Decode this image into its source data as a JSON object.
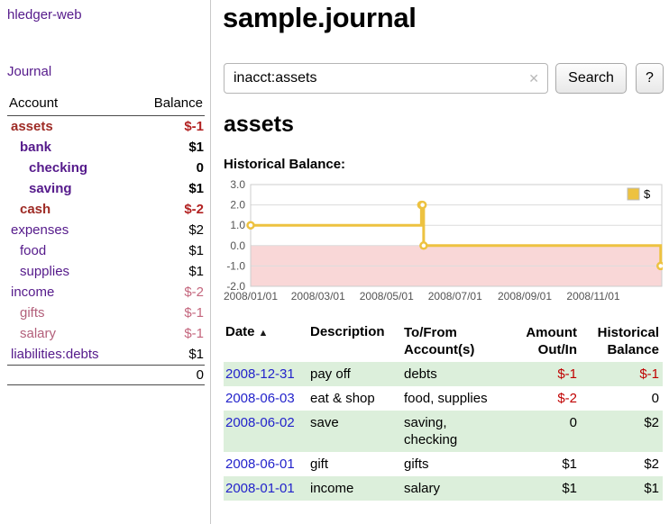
{
  "colors": {
    "link_purple": "#551a8b",
    "negative_red_bold": "#b22222",
    "negative_rose": "#c4667d",
    "register_negative": "#c00000",
    "row_stripe_green": "#dcefdb",
    "chart_series_gold": "#edc240",
    "chart_negative_region": "#f9d7d7",
    "date_link_blue": "#2323cb"
  },
  "sidebar": {
    "brand": "hledger-web",
    "journal_link": "Journal",
    "header": {
      "account": "Account",
      "balance": "Balance"
    },
    "accounts": [
      {
        "name": "assets",
        "balance": "$-1"
      },
      {
        "name": "bank",
        "balance": "$1"
      },
      {
        "name": "checking",
        "balance": "0"
      },
      {
        "name": "saving",
        "balance": "$1"
      },
      {
        "name": "cash",
        "balance": "$-2"
      },
      {
        "name": "expenses",
        "balance": "$2"
      },
      {
        "name": "food",
        "balance": "$1"
      },
      {
        "name": "supplies",
        "balance": "$1"
      },
      {
        "name": "income",
        "balance": "$-2"
      },
      {
        "name": "gifts",
        "balance": "$-1"
      },
      {
        "name": "salary",
        "balance": "$-1"
      },
      {
        "name": "liabilities:debts",
        "balance": "$1"
      }
    ],
    "total": "0"
  },
  "main": {
    "title": "sample.journal",
    "search": {
      "query": "inacct:assets",
      "clear_icon": "✕",
      "button": "Search",
      "help": "?"
    },
    "account_heading": "assets",
    "chart_label": "Historical Balance:",
    "register": {
      "headers": {
        "date": "Date",
        "sort_icon": "▲",
        "description": "Description",
        "accounts": "To/From\nAccount(s)",
        "amount": "Amount\nOut/In",
        "balance": "Historical\nBalance"
      },
      "rows": [
        {
          "date": "2008-12-31",
          "description": "pay off",
          "accounts": "debts",
          "amount": "$-1",
          "balance": "$-1"
        },
        {
          "date": "2008-06-03",
          "description": "eat & shop",
          "accounts": "food, supplies",
          "amount": "$-2",
          "balance": "0"
        },
        {
          "date": "2008-06-02",
          "description": "save",
          "accounts": "saving, checking",
          "amount": "0",
          "balance": "$2"
        },
        {
          "date": "2008-06-01",
          "description": "gift",
          "accounts": "gifts",
          "amount": "$1",
          "balance": "$2"
        },
        {
          "date": "2008-01-01",
          "description": "income",
          "accounts": "salary",
          "amount": "$1",
          "balance": "$1"
        }
      ]
    }
  },
  "chart_data": {
    "type": "line",
    "step": true,
    "title": "Historical Balance:",
    "series": [
      {
        "name": "$",
        "color": "#edc240",
        "points": [
          [
            "2008-01-01",
            1
          ],
          [
            "2008-06-01",
            2
          ],
          [
            "2008-06-02",
            2
          ],
          [
            "2008-06-03",
            0
          ],
          [
            "2008-12-31",
            -1
          ]
        ]
      }
    ],
    "x_ticks": [
      "2008/01/01",
      "2008/03/01",
      "2008/05/01",
      "2008/07/01",
      "2008/09/01",
      "2008/11/01"
    ],
    "y_ticks": [
      3.0,
      2.0,
      1.0,
      0.0,
      -1.0,
      -2.0
    ],
    "xlim": [
      "2008-01-01",
      "2009-01-01"
    ],
    "ylim": [
      -2,
      3
    ],
    "legend": {
      "label": "$",
      "position": "top-right"
    },
    "grid": "horizontal",
    "negative_region_color": "#f9d7d7"
  }
}
